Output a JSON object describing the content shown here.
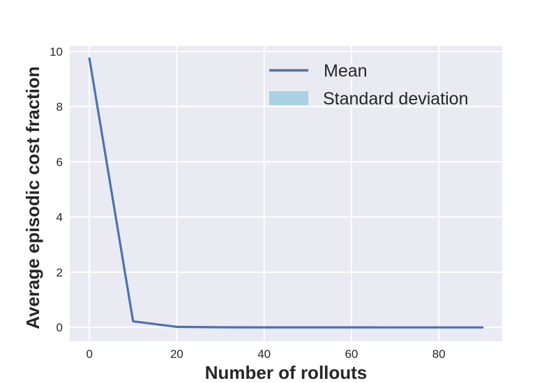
{
  "chart_data": {
    "type": "line",
    "xlabel": "Number of rollouts",
    "ylabel": "Average episodic cost fraction",
    "xlim": [
      -4.5,
      94.5
    ],
    "ylim": [
      -0.5,
      10.2
    ],
    "xticks": [
      0,
      20,
      40,
      60,
      80
    ],
    "yticks": [
      0,
      2,
      4,
      6,
      8,
      10
    ],
    "grid": true,
    "legend_position": "top-right",
    "series": [
      {
        "name": "Mean",
        "color": "#4c72b0",
        "x": [
          0,
          10,
          20,
          30,
          40,
          50,
          60,
          70,
          80,
          90
        ],
        "y": [
          9.75,
          0.22,
          0.02,
          0.005,
          0.002,
          0.001,
          0.001,
          0.0,
          0.0,
          0.0
        ]
      }
    ],
    "band": {
      "name": "Standard deviation",
      "color": "#a8d1e3"
    }
  }
}
